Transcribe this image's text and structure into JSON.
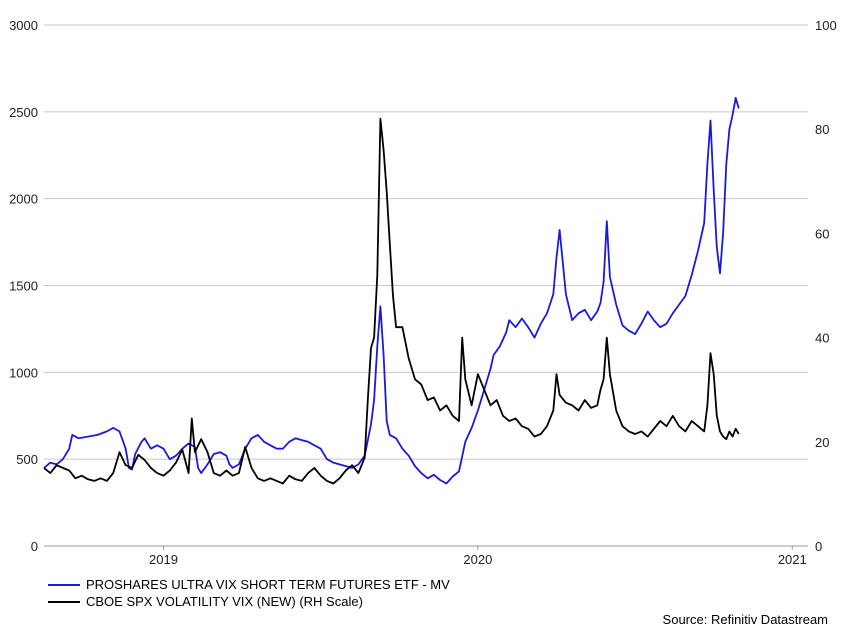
{
  "chart_data": {
    "type": "line",
    "title": "",
    "y_left": {
      "ylim": [
        0,
        3000
      ],
      "ticks": [
        "0",
        "500",
        "1000",
        "1500",
        "2000",
        "2500",
        "3000"
      ]
    },
    "y_right": {
      "ylim": [
        0,
        100
      ],
      "ticks": [
        "0",
        "20",
        "40",
        "60",
        "80",
        "100"
      ]
    },
    "xlim": [
      2018.62,
      2021.05
    ],
    "x_ticks": [
      {
        "label": "2019",
        "at": 2019.0
      },
      {
        "label": "2020",
        "at": 2020.0
      },
      {
        "label": "2021",
        "at": 2021.0
      }
    ],
    "grid": "horizontal",
    "legend_position": "bottom-left",
    "series": [
      {
        "name": "PROSHARES ULTRA VIX SHORT TERM FUTURES ETF - MV",
        "axis": "left",
        "color": "#1a1adb",
        "points": [
          [
            2018.62,
            450
          ],
          [
            2018.64,
            480
          ],
          [
            2018.66,
            470
          ],
          [
            2018.68,
            500
          ],
          [
            2018.7,
            560
          ],
          [
            2018.71,
            640
          ],
          [
            2018.73,
            620
          ],
          [
            2018.76,
            630
          ],
          [
            2018.79,
            640
          ],
          [
            2018.82,
            660
          ],
          [
            2018.84,
            680
          ],
          [
            2018.86,
            660
          ],
          [
            2018.88,
            560
          ],
          [
            2018.89,
            450
          ],
          [
            2018.9,
            440
          ],
          [
            2018.91,
            530
          ],
          [
            2018.93,
            600
          ],
          [
            2018.94,
            620
          ],
          [
            2018.96,
            560
          ],
          [
            2018.98,
            580
          ],
          [
            2019.0,
            560
          ],
          [
            2019.02,
            500
          ],
          [
            2019.04,
            520
          ],
          [
            2019.06,
            560
          ],
          [
            2019.08,
            590
          ],
          [
            2019.1,
            570
          ],
          [
            2019.11,
            450
          ],
          [
            2019.12,
            420
          ],
          [
            2019.14,
            470
          ],
          [
            2019.16,
            530
          ],
          [
            2019.18,
            540
          ],
          [
            2019.2,
            520
          ],
          [
            2019.21,
            470
          ],
          [
            2019.22,
            450
          ],
          [
            2019.24,
            470
          ],
          [
            2019.26,
            560
          ],
          [
            2019.28,
            620
          ],
          [
            2019.3,
            640
          ],
          [
            2019.32,
            600
          ],
          [
            2019.34,
            580
          ],
          [
            2019.36,
            560
          ],
          [
            2019.38,
            560
          ],
          [
            2019.4,
            600
          ],
          [
            2019.42,
            620
          ],
          [
            2019.44,
            610
          ],
          [
            2019.46,
            600
          ],
          [
            2019.48,
            580
          ],
          [
            2019.5,
            560
          ],
          [
            2019.52,
            500
          ],
          [
            2019.54,
            480
          ],
          [
            2019.56,
            470
          ],
          [
            2019.58,
            460
          ],
          [
            2019.6,
            450
          ],
          [
            2019.62,
            470
          ],
          [
            2019.64,
            520
          ],
          [
            2019.66,
            700
          ],
          [
            2019.67,
            840
          ],
          [
            2019.68,
            1150
          ],
          [
            2019.69,
            1380
          ],
          [
            2019.7,
            1100
          ],
          [
            2019.71,
            720
          ],
          [
            2019.72,
            640
          ],
          [
            2019.74,
            620
          ],
          [
            2019.76,
            560
          ],
          [
            2019.78,
            520
          ],
          [
            2019.8,
            460
          ],
          [
            2019.82,
            420
          ],
          [
            2019.84,
            390
          ],
          [
            2019.86,
            410
          ],
          [
            2019.88,
            380
          ],
          [
            2019.9,
            360
          ],
          [
            2019.92,
            400
          ],
          [
            2019.94,
            430
          ],
          [
            2019.96,
            600
          ],
          [
            2019.98,
            680
          ],
          [
            2020.0,
            780
          ],
          [
            2020.02,
            900
          ],
          [
            2020.04,
            1020
          ],
          [
            2020.05,
            1100
          ],
          [
            2020.07,
            1150
          ],
          [
            2020.09,
            1230
          ],
          [
            2020.1,
            1300
          ],
          [
            2020.12,
            1260
          ],
          [
            2020.14,
            1310
          ],
          [
            2020.16,
            1260
          ],
          [
            2020.18,
            1200
          ],
          [
            2020.2,
            1280
          ],
          [
            2020.22,
            1340
          ],
          [
            2020.24,
            1450
          ],
          [
            2020.25,
            1660
          ],
          [
            2020.26,
            1820
          ],
          [
            2020.28,
            1450
          ],
          [
            2020.3,
            1300
          ],
          [
            2020.32,
            1340
          ],
          [
            2020.34,
            1360
          ],
          [
            2020.36,
            1300
          ],
          [
            2020.38,
            1350
          ],
          [
            2020.39,
            1400
          ],
          [
            2020.4,
            1520
          ],
          [
            2020.41,
            1870
          ],
          [
            2020.42,
            1550
          ],
          [
            2020.44,
            1390
          ],
          [
            2020.46,
            1270
          ],
          [
            2020.48,
            1240
          ],
          [
            2020.5,
            1220
          ],
          [
            2020.52,
            1280
          ],
          [
            2020.54,
            1350
          ],
          [
            2020.56,
            1300
          ],
          [
            2020.58,
            1260
          ],
          [
            2020.6,
            1280
          ],
          [
            2020.62,
            1340
          ],
          [
            2020.64,
            1390
          ],
          [
            2020.66,
            1440
          ],
          [
            2020.68,
            1560
          ],
          [
            2020.7,
            1700
          ],
          [
            2020.72,
            1860
          ],
          [
            2020.73,
            2200
          ],
          [
            2020.74,
            2450
          ],
          [
            2020.75,
            2050
          ],
          [
            2020.76,
            1720
          ],
          [
            2020.77,
            1570
          ],
          [
            2020.78,
            1800
          ],
          [
            2020.79,
            2200
          ],
          [
            2020.8,
            2400
          ],
          [
            2020.81,
            2480
          ],
          [
            2020.82,
            2580
          ],
          [
            2020.83,
            2520
          ]
        ]
      },
      {
        "name": "CBOE SPX VOLATILITY VIX (NEW) (RH Scale)",
        "axis": "right",
        "color": "#000000",
        "points": [
          [
            2018.62,
            15.0
          ],
          [
            2018.64,
            14.0
          ],
          [
            2018.66,
            15.5
          ],
          [
            2018.68,
            15.0
          ],
          [
            2018.7,
            14.5
          ],
          [
            2018.72,
            13.0
          ],
          [
            2018.74,
            13.5
          ],
          [
            2018.76,
            12.8
          ],
          [
            2018.78,
            12.5
          ],
          [
            2018.8,
            13.0
          ],
          [
            2018.82,
            12.5
          ],
          [
            2018.84,
            14.0
          ],
          [
            2018.86,
            18.0
          ],
          [
            2018.88,
            15.5
          ],
          [
            2018.9,
            15.0
          ],
          [
            2018.92,
            17.5
          ],
          [
            2018.94,
            16.5
          ],
          [
            2018.96,
            15.0
          ],
          [
            2018.98,
            14.0
          ],
          [
            2019.0,
            13.5
          ],
          [
            2019.02,
            14.5
          ],
          [
            2019.04,
            16.0
          ],
          [
            2019.06,
            18.5
          ],
          [
            2019.08,
            14.0
          ],
          [
            2019.09,
            24.5
          ],
          [
            2019.1,
            18.0
          ],
          [
            2019.12,
            20.5
          ],
          [
            2019.14,
            18.0
          ],
          [
            2019.16,
            14.0
          ],
          [
            2019.18,
            13.5
          ],
          [
            2019.2,
            14.5
          ],
          [
            2019.22,
            13.5
          ],
          [
            2019.24,
            14.0
          ],
          [
            2019.26,
            19.0
          ],
          [
            2019.28,
            15.0
          ],
          [
            2019.3,
            13.0
          ],
          [
            2019.32,
            12.5
          ],
          [
            2019.34,
            13.0
          ],
          [
            2019.36,
            12.5
          ],
          [
            2019.38,
            12.0
          ],
          [
            2019.4,
            13.5
          ],
          [
            2019.42,
            12.8
          ],
          [
            2019.44,
            12.5
          ],
          [
            2019.46,
            14.0
          ],
          [
            2019.48,
            15.0
          ],
          [
            2019.5,
            13.5
          ],
          [
            2019.52,
            12.5
          ],
          [
            2019.54,
            12.0
          ],
          [
            2019.56,
            13.0
          ],
          [
            2019.58,
            14.5
          ],
          [
            2019.6,
            15.5
          ],
          [
            2019.62,
            14.0
          ],
          [
            2019.64,
            17.0
          ],
          [
            2019.65,
            28.0
          ],
          [
            2019.66,
            38.0
          ],
          [
            2019.67,
            40.0
          ],
          [
            2019.68,
            52.0
          ],
          [
            2019.69,
            82.0
          ],
          [
            2019.7,
            76.0
          ],
          [
            2019.71,
            68.0
          ],
          [
            2019.72,
            58.0
          ],
          [
            2019.73,
            48.0
          ],
          [
            2019.74,
            42.0
          ],
          [
            2019.76,
            42.0
          ],
          [
            2019.78,
            36.0
          ],
          [
            2019.8,
            32.0
          ],
          [
            2019.82,
            31.0
          ],
          [
            2019.84,
            28.0
          ],
          [
            2019.86,
            28.5
          ],
          [
            2019.88,
            26.0
          ],
          [
            2019.9,
            27.0
          ],
          [
            2019.92,
            25.0
          ],
          [
            2019.94,
            24.0
          ],
          [
            2019.95,
            40.0
          ],
          [
            2019.96,
            32.0
          ],
          [
            2019.98,
            27.0
          ],
          [
            2020.0,
            33.0
          ],
          [
            2020.02,
            30.0
          ],
          [
            2020.04,
            27.0
          ],
          [
            2020.06,
            28.0
          ],
          [
            2020.08,
            25.0
          ],
          [
            2020.1,
            24.0
          ],
          [
            2020.12,
            24.5
          ],
          [
            2020.14,
            23.0
          ],
          [
            2020.16,
            22.5
          ],
          [
            2020.18,
            21.0
          ],
          [
            2020.2,
            21.5
          ],
          [
            2020.22,
            23.0
          ],
          [
            2020.24,
            26.0
          ],
          [
            2020.25,
            33.0
          ],
          [
            2020.26,
            29.0
          ],
          [
            2020.28,
            27.5
          ],
          [
            2020.3,
            27.0
          ],
          [
            2020.32,
            26.0
          ],
          [
            2020.34,
            28.0
          ],
          [
            2020.36,
            26.5
          ],
          [
            2020.38,
            27.0
          ],
          [
            2020.39,
            30.0
          ],
          [
            2020.4,
            32.0
          ],
          [
            2020.41,
            40.0
          ],
          [
            2020.42,
            33.0
          ],
          [
            2020.44,
            26.0
          ],
          [
            2020.46,
            23.0
          ],
          [
            2020.48,
            22.0
          ],
          [
            2020.5,
            21.5
          ],
          [
            2020.52,
            22.0
          ],
          [
            2020.54,
            21.0
          ],
          [
            2020.56,
            22.5
          ],
          [
            2020.58,
            24.0
          ],
          [
            2020.6,
            23.0
          ],
          [
            2020.62,
            25.0
          ],
          [
            2020.64,
            23.0
          ],
          [
            2020.66,
            22.0
          ],
          [
            2020.68,
            24.0
          ],
          [
            2020.7,
            23.0
          ],
          [
            2020.72,
            22.0
          ],
          [
            2020.73,
            27.0
          ],
          [
            2020.74,
            37.0
          ],
          [
            2020.75,
            33.0
          ],
          [
            2020.76,
            25.0
          ],
          [
            2020.77,
            22.0
          ],
          [
            2020.78,
            21.0
          ],
          [
            2020.79,
            20.5
          ],
          [
            2020.8,
            22.0
          ],
          [
            2020.81,
            21.0
          ],
          [
            2020.82,
            22.5
          ],
          [
            2020.83,
            21.5
          ]
        ]
      }
    ]
  },
  "legend": [
    {
      "label": "PROSHARES ULTRA VIX SHORT TERM FUTURES ETF - MV",
      "color": "#1a1adb"
    },
    {
      "label": "CBOE SPX VOLATILITY VIX (NEW) (RH Scale)",
      "color": "#000000"
    }
  ],
  "source": "Source: Refinitiv Datastream"
}
